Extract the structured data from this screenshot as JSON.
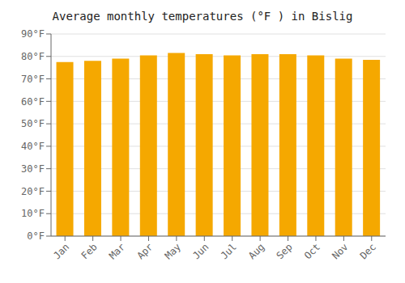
{
  "chart_data": {
    "type": "bar",
    "title": "Average monthly temperatures (°F ) in Bislig",
    "categories": [
      "Jan",
      "Feb",
      "Mar",
      "Apr",
      "May",
      "Jun",
      "Jul",
      "Aug",
      "Sep",
      "Oct",
      "Nov",
      "Dec"
    ],
    "values": [
      77.5,
      78.0,
      79.0,
      80.5,
      81.5,
      81.0,
      80.5,
      81.0,
      81.0,
      80.5,
      79.0,
      78.5
    ],
    "color": "#F5A800",
    "ylim": [
      0,
      90
    ],
    "yticks": [
      {
        "value": 0,
        "label": "0°F"
      },
      {
        "value": 10,
        "label": "10°F"
      },
      {
        "value": 20,
        "label": "20°F"
      },
      {
        "value": 30,
        "label": "30°F"
      },
      {
        "value": 40,
        "label": "40°F"
      },
      {
        "value": 50,
        "label": "50°F"
      },
      {
        "value": 60,
        "label": "60°F"
      },
      {
        "value": 70,
        "label": "70°F"
      },
      {
        "value": 80,
        "label": "80°F"
      },
      {
        "value": 90,
        "label": "90°F"
      }
    ],
    "grid": true
  }
}
